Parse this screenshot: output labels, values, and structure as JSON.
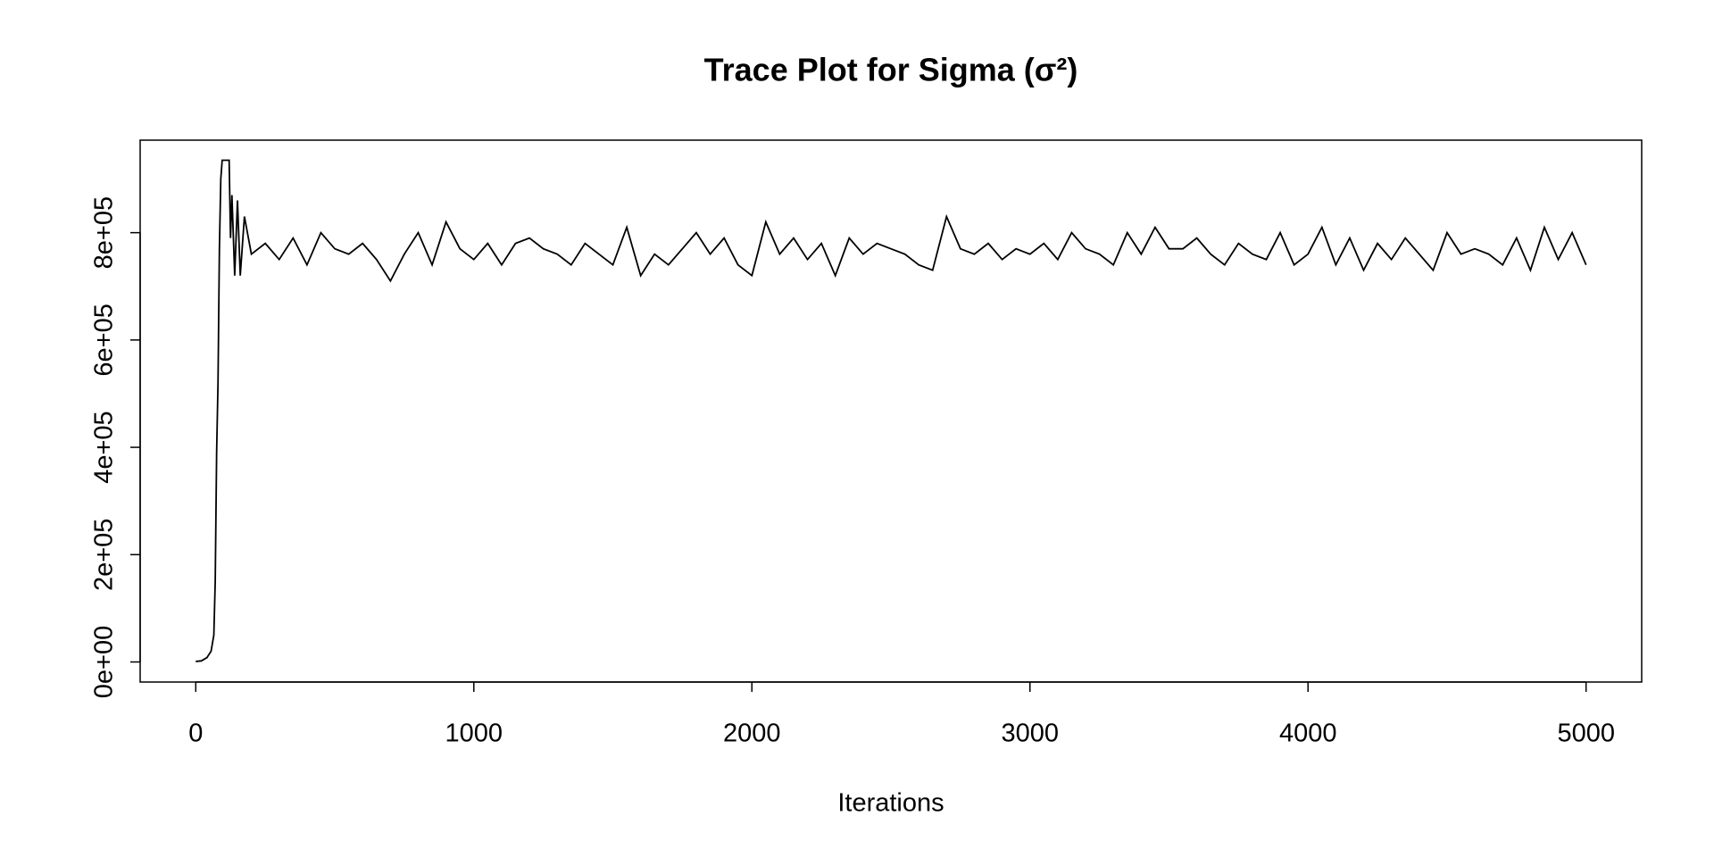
{
  "chart_data": {
    "type": "line",
    "title": "Trace Plot for Sigma (σ²)",
    "x_label": "Iterations",
    "xlim": [
      -200,
      5200
    ],
    "xticks": [
      0,
      1000,
      2000,
      3000,
      4000,
      5000
    ],
    "ylim": [
      -37400,
      972400
    ],
    "yticks": [
      {
        "value": 0,
        "label": "0e+00"
      },
      {
        "value": 200000,
        "label": "2e+05"
      },
      {
        "value": 400000,
        "label": "4e+05"
      },
      {
        "value": 600000,
        "label": "6e+05"
      },
      {
        "value": 800000,
        "label": "8e+05"
      }
    ],
    "series": [
      {
        "color": "#000000",
        "x": [
          0,
          20,
          40,
          55,
          65,
          70,
          75,
          80,
          85,
          90,
          95,
          100,
          120,
          125,
          130,
          140,
          150,
          160,
          175,
          200,
          250,
          300,
          350,
          400,
          450,
          500,
          550,
          600,
          650,
          700,
          750,
          800,
          850,
          900,
          950,
          1000,
          1050,
          1100,
          1150,
          1200,
          1250,
          1300,
          1350,
          1400,
          1450,
          1500,
          1550,
          1600,
          1650,
          1700,
          1750,
          1800,
          1850,
          1900,
          1950,
          2000,
          2050,
          2100,
          2150,
          2200,
          2250,
          2300,
          2350,
          2400,
          2450,
          2500,
          2550,
          2600,
          2650,
          2700,
          2750,
          2800,
          2850,
          2900,
          2950,
          3000,
          3050,
          3100,
          3150,
          3200,
          3250,
          3300,
          3350,
          3400,
          3450,
          3500,
          3550,
          3600,
          3650,
          3700,
          3750,
          3800,
          3850,
          3900,
          3950,
          4000,
          4050,
          4100,
          4150,
          4200,
          4250,
          4300,
          4350,
          4400,
          4450,
          4500,
          4550,
          4600,
          4650,
          4700,
          4750,
          4800,
          4850,
          4900,
          4950,
          5000
        ],
        "values": [
          1000,
          2000,
          8000,
          20000,
          50000,
          150000,
          390000,
          520000,
          770000,
          900000,
          935000,
          935000,
          935000,
          790000,
          870000,
          720000,
          860000,
          720000,
          830000,
          760000,
          780000,
          750000,
          790000,
          740000,
          800000,
          770000,
          760000,
          780000,
          750000,
          710000,
          760000,
          800000,
          740000,
          820000,
          770000,
          750000,
          780000,
          740000,
          780000,
          790000,
          770000,
          760000,
          740000,
          780000,
          760000,
          740000,
          810000,
          720000,
          760000,
          740000,
          770000,
          800000,
          760000,
          790000,
          740000,
          720000,
          820000,
          760000,
          790000,
          750000,
          780000,
          720000,
          790000,
          760000,
          780000,
          770000,
          760000,
          740000,
          730000,
          830000,
          770000,
          760000,
          780000,
          750000,
          770000,
          760000,
          780000,
          750000,
          800000,
          770000,
          760000,
          740000,
          800000,
          760000,
          810000,
          770000,
          770000,
          790000,
          760000,
          740000,
          780000,
          760000,
          750000,
          800000,
          740000,
          760000,
          810000,
          740000,
          790000,
          730000,
          780000,
          750000,
          790000,
          760000,
          730000,
          800000,
          760000,
          770000,
          760000,
          740000,
          790000,
          730000,
          810000,
          750000,
          800000,
          740000
        ]
      }
    ]
  }
}
